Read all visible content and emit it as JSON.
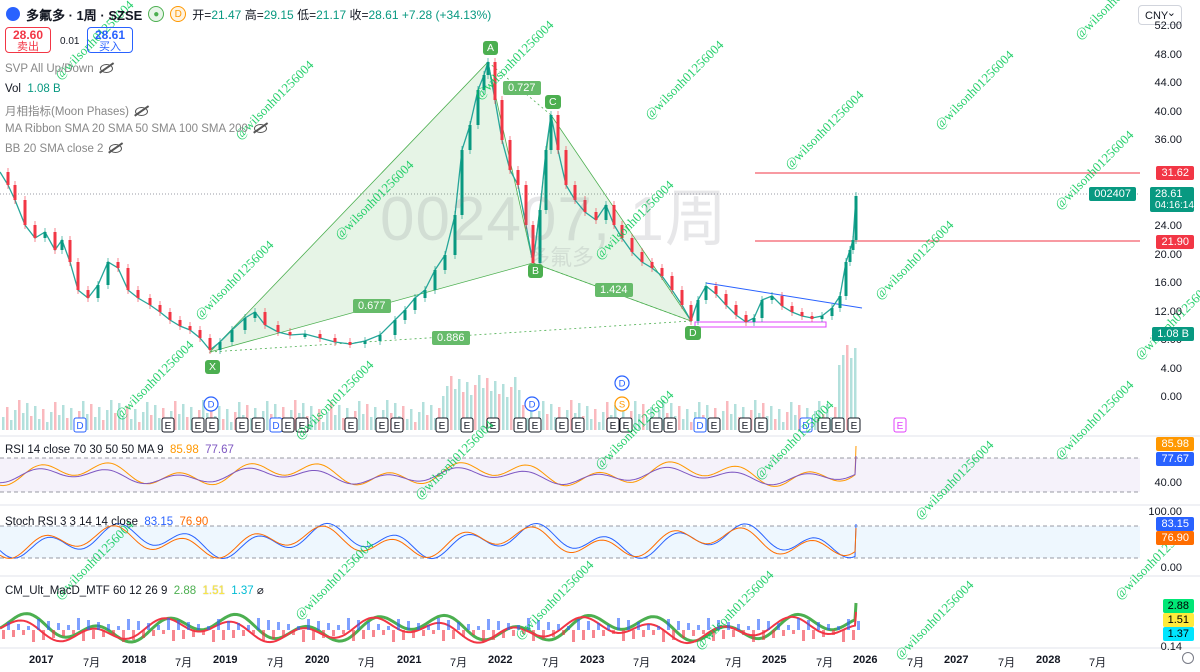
{
  "header": {
    "symbol": "多氟多 · 1周 · SZSE",
    "badge_d": "D",
    "ohlc": {
      "open_label": "开=",
      "open": "21.47",
      "high_label": "高=",
      "high": "29.15",
      "low_label": "低=",
      "low": "21.17",
      "close_label": "收=",
      "close": "28.61",
      "change": "+7.28 (+34.13%)"
    }
  },
  "trade": {
    "sell_price": "28.60",
    "sell_label": "卖出",
    "spread": "0.01",
    "buy_price": "28.61",
    "buy_label": "买入"
  },
  "currency": "CNY",
  "indicators": [
    {
      "name": "SVP All Up/Down",
      "values": ""
    },
    {
      "name": "Vol",
      "values": "1.08 B"
    },
    {
      "name": "月相指标(Moon Phases)",
      "values": ""
    },
    {
      "name": "MA Ribbon SMA 20 SMA 50 SMA 100 SMA 200",
      "values": ""
    },
    {
      "name": "BB 20 SMA close 2",
      "values": ""
    }
  ],
  "watermark": {
    "big": "002407, 1周",
    "small": "多氟多"
  },
  "price_axis": [
    "52.00",
    "48.00",
    "44.00",
    "40.00",
    "36.00",
    "31.62",
    "28.61",
    "24.00",
    "21.90",
    "20.00",
    "16.00",
    "12.00",
    "8.00",
    "4.00",
    "0.00"
  ],
  "price_tags": {
    "current_ticker": "002407",
    "current_price": "28.61",
    "countdown": "04:16:14",
    "line_upper": "31.62",
    "line_lower": "21.90",
    "volume": "1.08 B"
  },
  "harmonic": {
    "points": {
      "X": "X",
      "A": "A",
      "B": "B",
      "C": "C",
      "D": "D"
    },
    "ratios": {
      "xb": "0.677",
      "ac": "0.727",
      "bd": "1.424",
      "xd": "0.886"
    }
  },
  "rsi_pane": {
    "title": "RSI 14 close 70 30 50 50 MA 9",
    "v1": "85.98",
    "v2": "77.67",
    "axis": [
      "85.98",
      "77.67",
      "40.00"
    ]
  },
  "stoch_pane": {
    "title": "Stoch RSI 3 3 14 14 close",
    "v1": "83.15",
    "v2": "76.90",
    "axis": [
      "100.00",
      "83.15",
      "76.90",
      "0.00"
    ]
  },
  "macd_pane": {
    "title": "CM_Ult_MacD_MTF 60 12 26 9",
    "v1": "2.88",
    "v2": "1.51",
    "v3": "1.37",
    "axis": [
      "2.88",
      "1.51",
      "1.37",
      "0.14"
    ]
  },
  "x_axis": [
    "2017",
    "7月",
    "2018",
    "7月",
    "2019",
    "7月",
    "2020",
    "7月",
    "2021",
    "7月",
    "2022",
    "7月",
    "2023",
    "7月",
    "2024",
    "7月",
    "2025",
    "7月",
    "2026",
    "7月",
    "2027",
    "7月",
    "2028",
    "7月"
  ],
  "colors": {
    "up": "#089981",
    "down": "#f23645",
    "pattern": "#4caf50",
    "rsi": "#ff9800",
    "ma": "#7e57c2",
    "stoch_k": "#2962ff",
    "stoch_d": "#ff6d00",
    "watermark_text": "#00c853"
  },
  "social_watermark": "@wilsonh01256004"
}
